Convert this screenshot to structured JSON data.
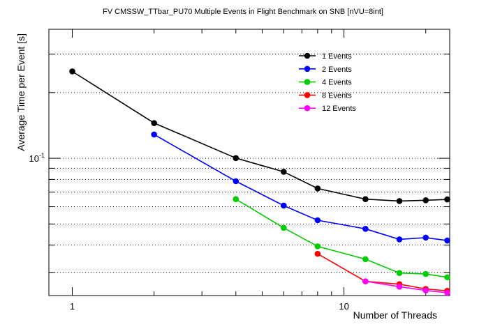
{
  "chart_data": {
    "type": "line",
    "title": "FV CMSSW_TTbar_PU70 Multiple Events in Flight Benchmark on SNB [nVU=8int]",
    "xlabel": "Number of Threads",
    "ylabel": "Average Time per Event [s]",
    "x_scale": "log",
    "y_scale": "log",
    "xlim": [
      0.82,
      24.5
    ],
    "ylim": [
      0.0235,
      0.39
    ],
    "x_tick_labels": [
      {
        "value": 1,
        "label": "1"
      },
      {
        "value": 10,
        "label": "10"
      }
    ],
    "y_tick_labels": [
      {
        "value": 0.1,
        "label": "10^-1"
      }
    ],
    "y_gridlines": [
      0.03,
      0.04,
      0.05,
      0.06,
      0.07,
      0.08,
      0.09,
      0.1,
      0.2,
      0.3
    ],
    "grid": "horizontal dotted",
    "legend_position": "top-right",
    "series": [
      {
        "name": "1 Events",
        "color": "#000000",
        "x": [
          1,
          2,
          4,
          6,
          8,
          12,
          16,
          20,
          24
        ],
        "y": [
          0.25,
          0.145,
          0.1002,
          0.0867,
          0.0727,
          0.065,
          0.0637,
          0.0642,
          0.0648
        ]
      },
      {
        "name": "2 Events",
        "color": "#0000ff",
        "x": [
          2,
          4,
          6,
          8,
          12,
          16,
          20,
          24
        ],
        "y": [
          0.1285,
          0.0785,
          0.0607,
          0.052,
          0.0475,
          0.0425,
          0.0433,
          0.042
        ]
      },
      {
        "name": "4 Events",
        "color": "#00cc00",
        "x": [
          4,
          6,
          8,
          12,
          16,
          20,
          24
        ],
        "y": [
          0.065,
          0.048,
          0.0395,
          0.0345,
          0.0298,
          0.0295,
          0.0285
        ]
      },
      {
        "name": "8 Events",
        "color": "#ff0000",
        "x": [
          8,
          12,
          16,
          20,
          24
        ],
        "y": [
          0.0365,
          0.0273,
          0.0265,
          0.0252,
          0.0247
        ]
      },
      {
        "name": "12 Events",
        "color": "#ff00ff",
        "x": [
          12,
          16,
          20,
          24
        ],
        "y": [
          0.0273,
          0.0258,
          0.0248,
          0.0242
        ]
      }
    ]
  }
}
